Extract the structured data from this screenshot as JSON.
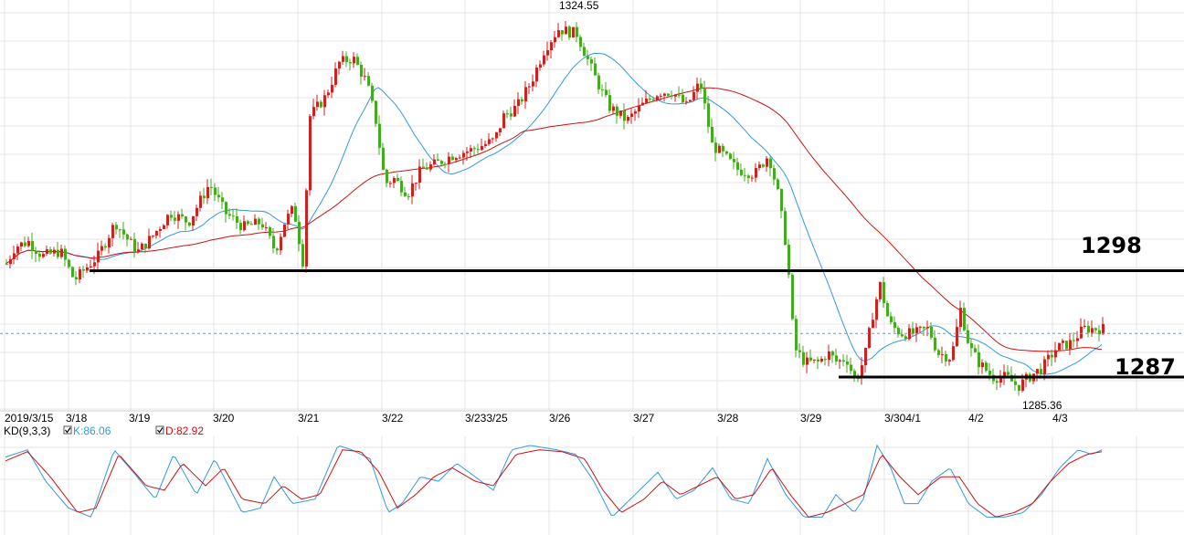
{
  "chart_data": {
    "type": "candlestick",
    "price_range": [
      1283.5,
      1326.0
    ],
    "indicator_range": [
      -5,
      105
    ],
    "x_axis": {
      "labels": [
        "2019/3/15",
        "3/18",
        "3/19",
        "3/20",
        "3/21",
        "3/22",
        "3/233/25",
        "3/26",
        "3/27",
        "3/28",
        "3/29",
        "3/304/1",
        "4/2",
        "4/3"
      ]
    },
    "annotations": {
      "high_label": "1324.55",
      "low_label": "1285.36",
      "resistance_label": "1298",
      "support_label": "1287",
      "resistance_level": 1298,
      "support_level": 1287,
      "current_level": 1291.5
    },
    "indicator": {
      "title": "KD(9,3,3)",
      "k_label": "K:86.06",
      "d_label": "D:82.92",
      "k_color": "#3399dd",
      "d_color": "#cc1111"
    },
    "colors": {
      "up": "#cc2222",
      "down": "#44aa22",
      "ma_short": "#3399dd",
      "ma_long": "#cc1111",
      "grid": "#e4e4e4",
      "current_line": "#6699cc"
    },
    "series": [
      {
        "name": "K",
        "values": []
      },
      {
        "name": "D",
        "values": []
      }
    ],
    "anchors": [
      [
        0,
        1297.5
      ],
      [
        15,
        1300.5
      ],
      [
        30,
        1301.0
      ],
      [
        45,
        1299.5
      ],
      [
        65,
        1300.0
      ],
      [
        80,
        1297.0
      ],
      [
        95,
        1298.5
      ],
      [
        106,
        1299.5
      ],
      [
        125,
        1303.0
      ],
      [
        140,
        1301.0
      ],
      [
        150,
        1300.0
      ],
      [
        165,
        1301.5
      ],
      [
        185,
        1304.0
      ],
      [
        205,
        1303.0
      ],
      [
        228,
        1307.0
      ],
      [
        245,
        1304.0
      ],
      [
        265,
        1302.5
      ],
      [
        285,
        1303.0
      ],
      [
        300,
        1300.0
      ],
      [
        310,
        1303.0
      ],
      [
        320,
        1304.5
      ],
      [
        330,
        1299.0
      ],
      [
        338,
        1314.0
      ],
      [
        355,
        1316.0
      ],
      [
        370,
        1319.5
      ],
      [
        385,
        1320.0
      ],
      [
        400,
        1317.5
      ],
      [
        410,
        1313.5
      ],
      [
        420,
        1307.0
      ],
      [
        430,
        1307.5
      ],
      [
        445,
        1306.0
      ],
      [
        460,
        1308.5
      ],
      [
        475,
        1309.0
      ],
      [
        495,
        1310.0
      ],
      [
        515,
        1310.5
      ],
      [
        540,
        1311.5
      ],
      [
        550,
        1314.0
      ],
      [
        565,
        1315.0
      ],
      [
        580,
        1317.5
      ],
      [
        595,
        1321.0
      ],
      [
        610,
        1323.0
      ],
      [
        630,
        1322.5
      ],
      [
        650,
        1318.0
      ],
      [
        665,
        1315.0
      ],
      [
        685,
        1313.5
      ],
      [
        700,
        1315.0
      ],
      [
        720,
        1316.5
      ],
      [
        735,
        1316.5
      ],
      [
        750,
        1315.0
      ],
      [
        765,
        1317.5
      ],
      [
        778,
        1311.0
      ],
      [
        790,
        1310.0
      ],
      [
        805,
        1308.5
      ],
      [
        825,
        1308.0
      ],
      [
        840,
        1310.0
      ],
      [
        850,
        1306.0
      ],
      [
        860,
        1300.0
      ],
      [
        868,
        1290.0
      ],
      [
        880,
        1288.5
      ],
      [
        895,
        1288.5
      ],
      [
        905,
        1289.5
      ],
      [
        915,
        1288.5
      ],
      [
        925,
        1289.0
      ],
      [
        935,
        1286.5
      ],
      [
        945,
        1289.0
      ],
      [
        955,
        1294.0
      ],
      [
        962,
        1296.5
      ],
      [
        972,
        1292.5
      ],
      [
        985,
        1291.5
      ],
      [
        1000,
        1291.5
      ],
      [
        1015,
        1292.0
      ],
      [
        1025,
        1289.5
      ],
      [
        1040,
        1289.0
      ],
      [
        1050,
        1294.0
      ],
      [
        1060,
        1290.0
      ],
      [
        1070,
        1288.5
      ],
      [
        1085,
        1287.0
      ],
      [
        1100,
        1287.0
      ],
      [
        1113,
        1286.0
      ],
      [
        1125,
        1287.0
      ],
      [
        1140,
        1288.0
      ],
      [
        1155,
        1290.0
      ],
      [
        1170,
        1290.5
      ],
      [
        1185,
        1292.0
      ],
      [
        1200,
        1292.0
      ],
      [
        1206,
        1292.0
      ]
    ],
    "k_anchors": [
      [
        0,
        80
      ],
      [
        30,
        90
      ],
      [
        50,
        55
      ],
      [
        75,
        25
      ],
      [
        100,
        15
      ],
      [
        125,
        90
      ],
      [
        150,
        60
      ],
      [
        170,
        35
      ],
      [
        190,
        85
      ],
      [
        215,
        40
      ],
      [
        235,
        80
      ],
      [
        255,
        40
      ],
      [
        265,
        20
      ],
      [
        285,
        25
      ],
      [
        300,
        60
      ],
      [
        320,
        30
      ],
      [
        345,
        35
      ],
      [
        370,
        95
      ],
      [
        385,
        90
      ],
      [
        405,
        80
      ],
      [
        425,
        20
      ],
      [
        440,
        30
      ],
      [
        460,
        60
      ],
      [
        480,
        55
      ],
      [
        500,
        75
      ],
      [
        520,
        60
      ],
      [
        540,
        45
      ],
      [
        560,
        90
      ],
      [
        580,
        95
      ],
      [
        610,
        90
      ],
      [
        630,
        85
      ],
      [
        650,
        55
      ],
      [
        670,
        15
      ],
      [
        700,
        45
      ],
      [
        720,
        65
      ],
      [
        740,
        35
      ],
      [
        760,
        45
      ],
      [
        780,
        70
      ],
      [
        800,
        35
      ],
      [
        820,
        30
      ],
      [
        840,
        80
      ],
      [
        860,
        40
      ],
      [
        880,
        15
      ],
      [
        900,
        15
      ],
      [
        915,
        40
      ],
      [
        935,
        20
      ],
      [
        945,
        35
      ],
      [
        960,
        95
      ],
      [
        975,
        70
      ],
      [
        990,
        30
      ],
      [
        1005,
        30
      ],
      [
        1020,
        55
      ],
      [
        1040,
        70
      ],
      [
        1060,
        30
      ],
      [
        1080,
        15
      ],
      [
        1100,
        15
      ],
      [
        1120,
        20
      ],
      [
        1140,
        40
      ],
      [
        1160,
        70
      ],
      [
        1180,
        90
      ],
      [
        1195,
        85
      ],
      [
        1206,
        90
      ]
    ],
    "d_anchors": [
      [
        0,
        75
      ],
      [
        30,
        88
      ],
      [
        55,
        60
      ],
      [
        85,
        20
      ],
      [
        105,
        25
      ],
      [
        130,
        85
      ],
      [
        160,
        50
      ],
      [
        180,
        45
      ],
      [
        200,
        75
      ],
      [
        225,
        50
      ],
      [
        245,
        70
      ],
      [
        265,
        35
      ],
      [
        290,
        30
      ],
      [
        310,
        50
      ],
      [
        330,
        35
      ],
      [
        350,
        40
      ],
      [
        375,
        90
      ],
      [
        395,
        88
      ],
      [
        415,
        65
      ],
      [
        435,
        25
      ],
      [
        455,
        40
      ],
      [
        475,
        60
      ],
      [
        495,
        70
      ],
      [
        520,
        55
      ],
      [
        540,
        50
      ],
      [
        565,
        85
      ],
      [
        590,
        90
      ],
      [
        615,
        88
      ],
      [
        640,
        80
      ],
      [
        660,
        45
      ],
      [
        680,
        20
      ],
      [
        705,
        35
      ],
      [
        725,
        55
      ],
      [
        745,
        40
      ],
      [
        765,
        50
      ],
      [
        785,
        60
      ],
      [
        805,
        35
      ],
      [
        825,
        40
      ],
      [
        845,
        70
      ],
      [
        865,
        40
      ],
      [
        885,
        15
      ],
      [
        905,
        20
      ],
      [
        925,
        30
      ],
      [
        945,
        40
      ],
      [
        965,
        85
      ],
      [
        985,
        60
      ],
      [
        1005,
        40
      ],
      [
        1030,
        60
      ],
      [
        1050,
        60
      ],
      [
        1070,
        30
      ],
      [
        1090,
        15
      ],
      [
        1110,
        20
      ],
      [
        1130,
        30
      ],
      [
        1150,
        55
      ],
      [
        1170,
        75
      ],
      [
        1190,
        85
      ],
      [
        1206,
        88
      ]
    ]
  }
}
